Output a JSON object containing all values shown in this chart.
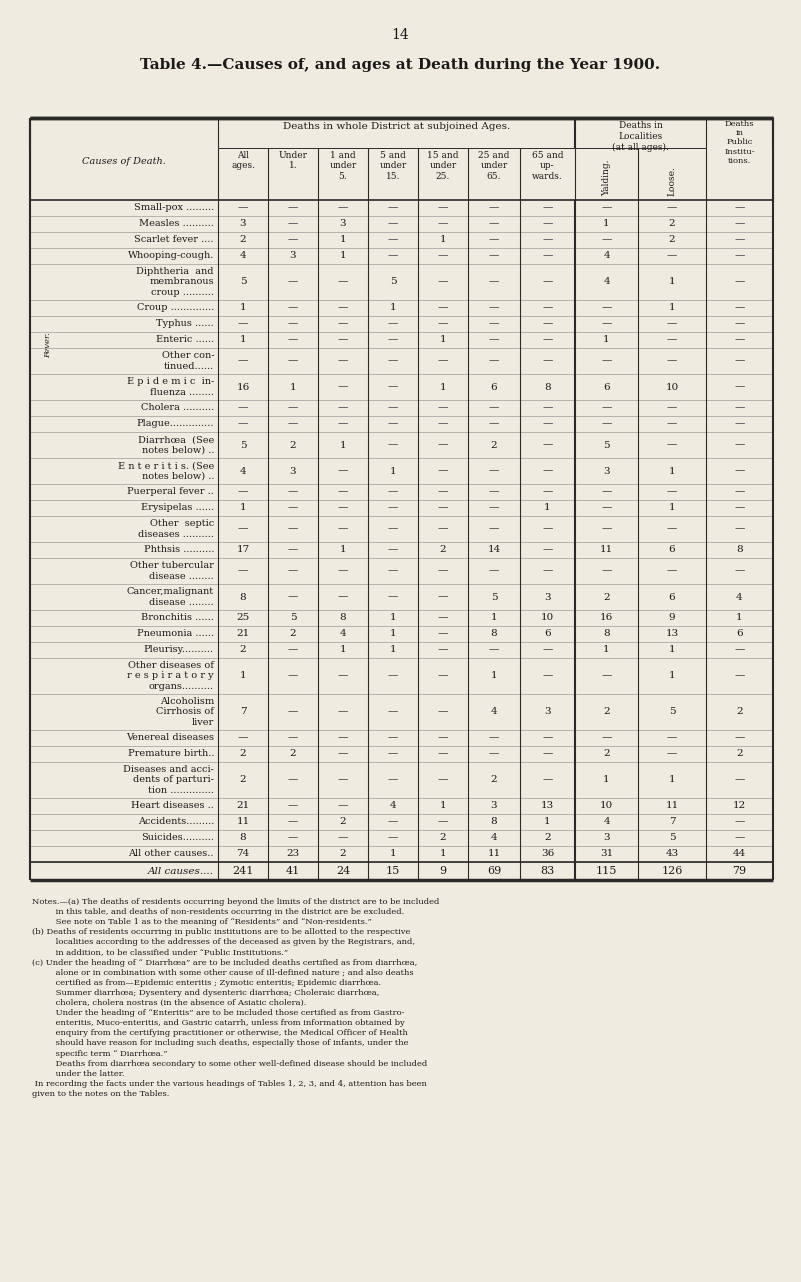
{
  "page_number": "14",
  "title": "Table 4.—Causes of, and ages at Death during the Year 1900.",
  "bg_color": "#f0ebe0",
  "rows": [
    [
      "Small-pox .........",
      "—",
      "—",
      "—",
      "—",
      "—",
      "—",
      "—",
      "—",
      "—",
      "—"
    ],
    [
      "Measles ..........",
      "3",
      "—",
      "3",
      "—",
      "—",
      "—",
      "—",
      "1",
      "2",
      "—"
    ],
    [
      "Scarlet fever ....",
      "2",
      "—",
      "1",
      "—",
      "1",
      "—",
      "—",
      "—",
      "2",
      "—"
    ],
    [
      "Whooping-cough.",
      "4",
      "3",
      "1",
      "—",
      "—",
      "—",
      "—",
      "4",
      "—",
      "—"
    ],
    [
      "Diphtheria  and\nmembranous\ncroup ..........",
      "5",
      "—",
      "—",
      "5",
      "—",
      "—",
      "—",
      "4",
      "1",
      "—"
    ],
    [
      "Croup ..............",
      "1",
      "—",
      "—",
      "1",
      "—",
      "—",
      "—",
      "—",
      "1",
      "—"
    ],
    [
      "Typhus ......",
      "—",
      "—",
      "—",
      "—",
      "—",
      "—",
      "—",
      "—",
      "—",
      "—"
    ],
    [
      "Enteric ......",
      "1",
      "—",
      "—",
      "—",
      "1",
      "—",
      "—",
      "1",
      "—",
      "—"
    ],
    [
      "Other con-\ntinued......",
      "—",
      "—",
      "—",
      "—",
      "—",
      "—",
      "—",
      "—",
      "—",
      "—"
    ],
    [
      "E p i d e m i c  in-\nfluenza ........",
      "16",
      "1",
      "—",
      "—",
      "1",
      "6",
      "8",
      "6",
      "10",
      "—"
    ],
    [
      "Cholera ..........",
      "—",
      "—",
      "—",
      "—",
      "—",
      "—",
      "—",
      "—",
      "—",
      "—"
    ],
    [
      "Plague..............",
      "—",
      "—",
      "—",
      "—",
      "—",
      "—",
      "—",
      "—",
      "—",
      "—"
    ],
    [
      "Diarrhœa  (See\nnotes below) ..",
      "5",
      "2",
      "1",
      "—",
      "—",
      "2",
      "—",
      "5",
      "—",
      "—"
    ],
    [
      "E n t e r i t i s. (See\nnotes below) ..",
      "4",
      "3",
      "—",
      "1",
      "—",
      "—",
      "—",
      "3",
      "1",
      "—"
    ],
    [
      "Puerperal fever ..",
      "—",
      "—",
      "—",
      "—",
      "—",
      "—",
      "—",
      "—",
      "—",
      "—"
    ],
    [
      "Erysipelas ......",
      "1",
      "—",
      "—",
      "—",
      "—",
      "—",
      "1",
      "—",
      "1",
      "—"
    ],
    [
      "Other  septic\ndiseases ..........",
      "—",
      "—",
      "—",
      "—",
      "—",
      "—",
      "—",
      "—",
      "—",
      "—"
    ],
    [
      "Phthsis ..........",
      "17",
      "—",
      "1",
      "—",
      "2",
      "14",
      "—",
      "11",
      "6",
      "8"
    ],
    [
      "Other tubercular\ndisease ........",
      "—",
      "—",
      "—",
      "—",
      "—",
      "—",
      "—",
      "—",
      "—",
      "—"
    ],
    [
      "Cancer,malignant\ndisease ........",
      "8",
      "—",
      "—",
      "—",
      "—",
      "5",
      "3",
      "2",
      "6",
      "4"
    ],
    [
      "Bronchitis ......",
      "25",
      "5",
      "8",
      "1",
      "—",
      "1",
      "10",
      "16",
      "9",
      "1"
    ],
    [
      "Pneumonia ......",
      "21",
      "2",
      "4",
      "1",
      "—",
      "8",
      "6",
      "8",
      "13",
      "6"
    ],
    [
      "Pleurisy..........",
      "2",
      "—",
      "1",
      "1",
      "—",
      "—",
      "—",
      "1",
      "1",
      "—"
    ],
    [
      "Other diseases of\nr e s p i r a t o r y\norgans..........",
      "1",
      "—",
      "—",
      "—",
      "—",
      "1",
      "—",
      "—",
      "1",
      "—"
    ],
    [
      "Alcoholism\nCirrhosis of\nliver",
      "7",
      "—",
      "—",
      "—",
      "—",
      "4",
      "3",
      "2",
      "5",
      "2"
    ],
    [
      "Venereal diseases",
      "—",
      "—",
      "—",
      "—",
      "—",
      "—",
      "—",
      "—",
      "—",
      "—"
    ],
    [
      "Premature birth..",
      "2",
      "2",
      "—",
      "—",
      "—",
      "—",
      "—",
      "2",
      "—",
      "2"
    ],
    [
      "Diseases and acci-\ndents of parturi-\ntion ..............",
      "2",
      "—",
      "—",
      "—",
      "—",
      "2",
      "—",
      "1",
      "1",
      "—"
    ],
    [
      "Heart diseases ..",
      "21",
      "—",
      "—",
      "4",
      "1",
      "3",
      "13",
      "10",
      "11",
      "12"
    ],
    [
      "Accidents.........",
      "11",
      "—",
      "2",
      "—",
      "—",
      "8",
      "1",
      "4",
      "7",
      "—"
    ],
    [
      "Suicides..........",
      "8",
      "—",
      "—",
      "—",
      "2",
      "4",
      "2",
      "3",
      "5",
      "—"
    ],
    [
      "All other causes..",
      "74",
      "23",
      "2",
      "1",
      "1",
      "11",
      "36",
      "31",
      "43",
      "44"
    ]
  ],
  "totals_row": [
    "All causes....",
    "241",
    "41",
    "24",
    "15",
    "9",
    "69",
    "83",
    "115",
    "126",
    "79"
  ],
  "fever_rows": [
    6,
    7,
    8
  ],
  "notes_text": "Notes.—(a) The deaths of residents occurring beyond the limits of the district are to be included\n         in this table, and deaths of non-residents occurring in the district are be excluded.\n         See note on Table 1 as to the meaning of “Residents” and “Non-residents.”\n(b) Deaths of residents occurring in public institutions are to be allotted to the respective\n         localities according to the addresses of the deceased as given by the Registrars, and,\n         in addition, to be classified under “Public Institutions.”\n(c) Under the heading of “ Diarrhœa” are to be included deaths certified as from diarrhœa,\n         alone or in combination with some other cause of ill-defined nature ; and also deaths\n         certified as from—Epidemic enteritis ; Zymotic enteritis; Epidemic diarrhœa.\n         Summer diarrhœa; Dysentery and dysenteric diarrhœa; Choleraic diarrhœa,\n         cholera, cholera nostras (in the absence of Asiatic cholera).\n         Under the heading of “Enteritis” are to be included those certified as from Gastro-\n         enteritis, Muco-enteritis, and Gastric catarrh, unless from information obtained by\n         enquiry from the certifying practitioner or otherwise, the Medical Officer of Health\n         should have reason for including such deaths, especially those of infants, under the\n         specific term “ Diarrhœa.”\n         Deaths from diarrhœa secondary to some other well-defined disease should be included\n         under the latter.\n In recording the facts under the various headings of Tables 1, 2, 3, and 4, attention has been\ngiven to the notes on the Tables."
}
